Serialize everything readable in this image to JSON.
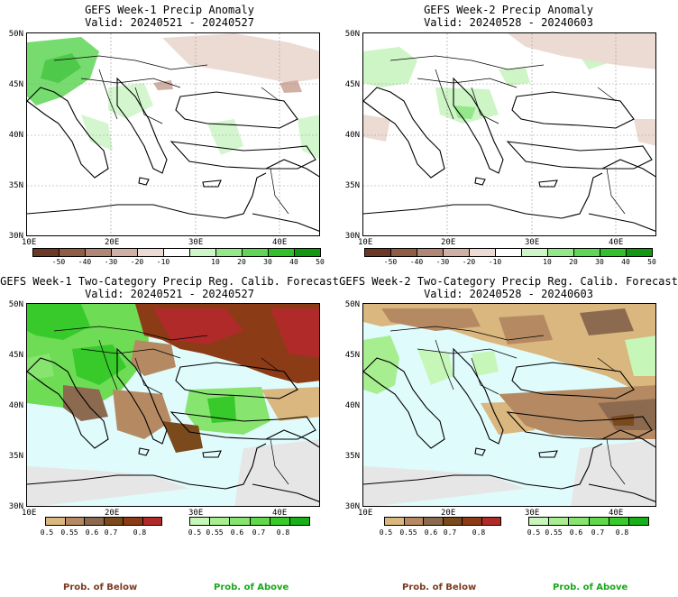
{
  "panels": [
    {
      "title": "GEFS Week-1 Precip Anomaly",
      "valid": "Valid: 20240521 - 20240527"
    },
    {
      "title": "GEFS Week-2 Precip Anomaly",
      "valid": "Valid: 20240528 - 20240603"
    },
    {
      "title": "GEFS Week-1 Two-Category Precip Reg. Calib. Forecast",
      "valid": "Valid: 20240521 - 20240527"
    },
    {
      "title": "GEFS Week-2 Two-Category Precip Reg. Calib. Forecast",
      "valid": "Valid: 20240528 - 20240603"
    }
  ],
  "lat_labels": [
    "50N",
    "45N",
    "40N",
    "35N",
    "30N"
  ],
  "lon_labels": [
    "10E",
    "20E",
    "30E",
    "40E"
  ],
  "anomaly_colorbar": {
    "labels": [
      "-50",
      "-40",
      "-30",
      "-20",
      "-10",
      "10",
      "20",
      "30",
      "40",
      "50"
    ],
    "colors": [
      "#6b3a26",
      "#8e5d45",
      "#b08776",
      "#d0b0a4",
      "#ecdbd3",
      "#ffffff",
      "#cdf5c6",
      "#95e88a",
      "#5fd656",
      "#30c02a",
      "#109810"
    ]
  },
  "prob_below_colorbar": {
    "labels": [
      "0.5",
      "0.55",
      "0.6",
      "0.7",
      "0.8"
    ],
    "colors": [
      "#d9b77f",
      "#b58a63",
      "#8b6a50",
      "#7a4a1c",
      "#8b3b16",
      "#b02a2a"
    ]
  },
  "prob_above_colorbar": {
    "labels": [
      "0.5",
      "0.55",
      "0.6",
      "0.7",
      "0.8"
    ],
    "colors": [
      "#c6f7b8",
      "#a6ee8f",
      "#86e46f",
      "#5fd84a",
      "#38c92a",
      "#18b018"
    ]
  },
  "legend": {
    "below": "Prob. of Below",
    "above": "Prob. of Above"
  }
}
